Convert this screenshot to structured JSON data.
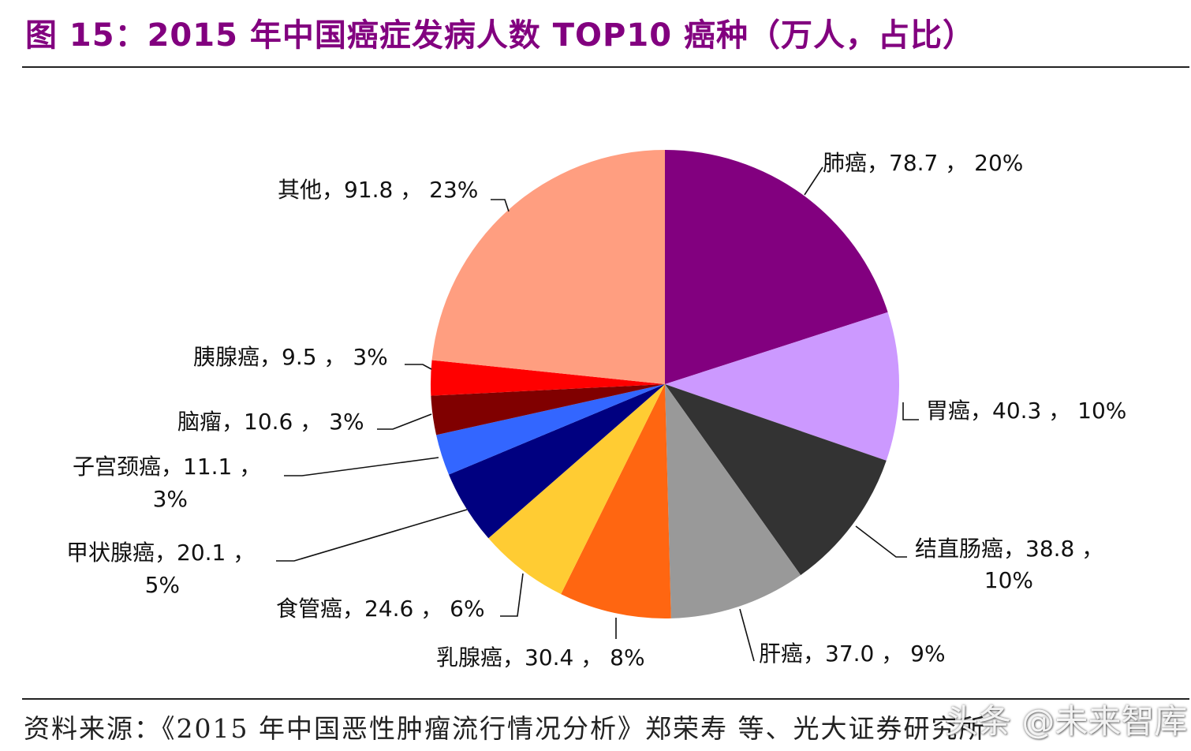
{
  "title": "图 15：2015 年中国癌症发病人数 TOP10 癌种（万人，占比）",
  "source": "资料来源：《2015 年中国恶性肿瘤流行情况分析》郑荣寿 等、光大证券研究所",
  "watermark": "头条 @未来智库",
  "chart_data": {
    "type": "pie",
    "title": "2015 年中国癌症发病人数 TOP10 癌种（万人，占比）",
    "unit": "万人",
    "start": "12 o'clock, clockwise",
    "slices": [
      {
        "name": "肺癌",
        "value": 78.7,
        "value_text": "78.7",
        "pct": "20%",
        "color": "#82007f"
      },
      {
        "name": "胃癌",
        "value": 40.3,
        "value_text": "40.3",
        "pct": "10%",
        "color": "#cc99ff"
      },
      {
        "name": "结直肠癌",
        "value": 38.8,
        "value_text": "38.8",
        "pct": "10%",
        "color": "#333333"
      },
      {
        "name": "肝癌",
        "value": 37.0,
        "value_text": "37.0",
        "pct": "9%",
        "color": "#999999"
      },
      {
        "name": "乳腺癌",
        "value": 30.4,
        "value_text": "30.4",
        "pct": "8%",
        "color": "#ff6611"
      },
      {
        "name": "食管癌",
        "value": 24.6,
        "value_text": "24.6",
        "pct": "6%",
        "color": "#ffcc33"
      },
      {
        "name": "甲状腺癌",
        "value": 20.1,
        "value_text": "20.1",
        "pct": "5%",
        "color": "#000080"
      },
      {
        "name": "子宫颈癌",
        "value": 11.1,
        "value_text": "11.1",
        "pct": "3%",
        "color": "#3366ff"
      },
      {
        "name": "脑瘤",
        "value": 10.6,
        "value_text": "10.6",
        "pct": "3%",
        "color": "#800000"
      },
      {
        "name": "胰腺癌",
        "value": 9.5,
        "value_text": "9.5",
        "pct": "3%",
        "color": "#ff0000"
      },
      {
        "name": "其他",
        "value": 91.8,
        "value_text": "91.8",
        "pct": "23%",
        "color": "#ff9e80"
      }
    ]
  }
}
